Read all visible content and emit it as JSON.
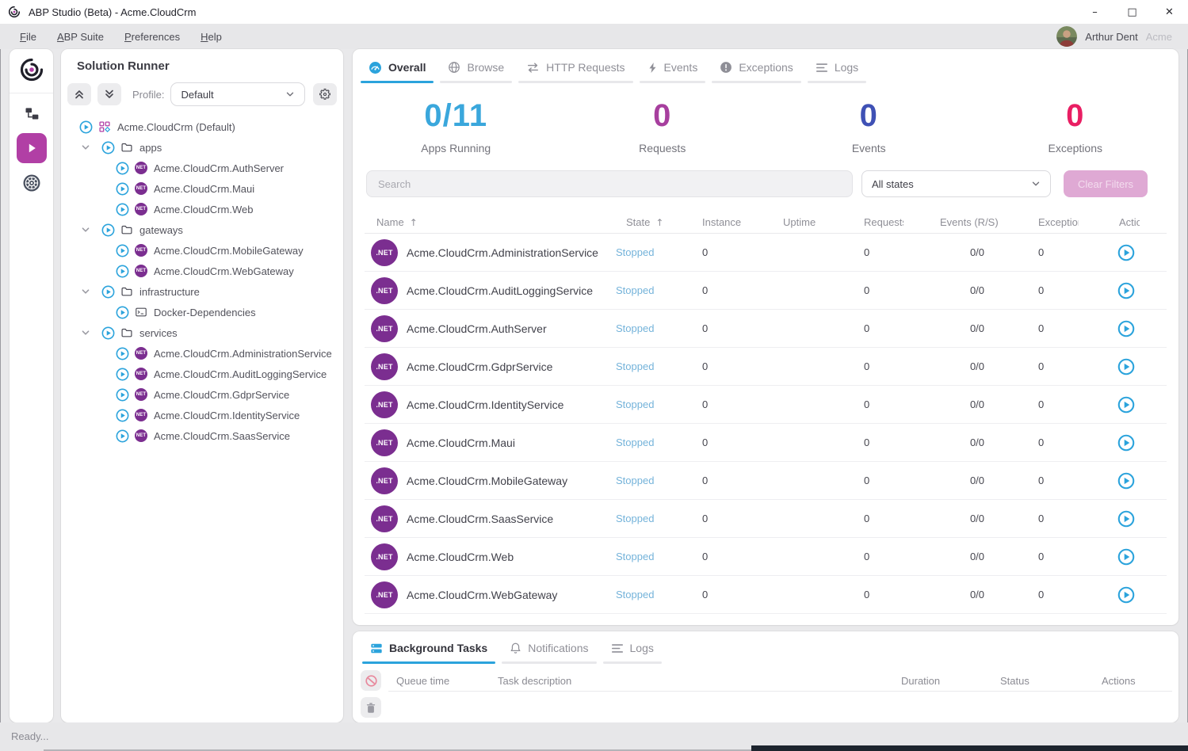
{
  "window": {
    "title": "ABP Studio (Beta) - Acme.CloudCrm"
  },
  "menubar": {
    "items": [
      "File",
      "ABP Suite",
      "Preferences",
      "Help"
    ],
    "user_name": "Arthur Dent",
    "org_name": "Acme"
  },
  "rail": {
    "items": [
      {
        "name": "abp-logo",
        "icon": "abp"
      },
      {
        "name": "solution-explorer",
        "icon": "treeview"
      },
      {
        "name": "solution-runner",
        "icon": "play",
        "active": true
      },
      {
        "name": "kubernetes",
        "icon": "helm"
      }
    ]
  },
  "sidebar": {
    "title": "Solution Runner",
    "profile_label": "Profile:",
    "profile_value": "Default",
    "tree": [
      {
        "label": "Acme.CloudCrm (Default)",
        "type": "root"
      },
      {
        "label": "apps",
        "type": "folder"
      },
      {
        "label": "Acme.CloudCrm.AuthServer",
        "type": "dotnet"
      },
      {
        "label": "Acme.CloudCrm.Maui",
        "type": "dotnet"
      },
      {
        "label": "Acme.CloudCrm.Web",
        "type": "dotnet"
      },
      {
        "label": "gateways",
        "type": "folder"
      },
      {
        "label": "Acme.CloudCrm.MobileGateway",
        "type": "dotnet"
      },
      {
        "label": "Acme.CloudCrm.WebGateway",
        "type": "dotnet"
      },
      {
        "label": "infrastructure",
        "type": "folder"
      },
      {
        "label": "Docker-Dependencies",
        "type": "terminal"
      },
      {
        "label": "services",
        "type": "folder"
      },
      {
        "label": "Acme.CloudCrm.AdministrationService",
        "type": "dotnet"
      },
      {
        "label": "Acme.CloudCrm.AuditLoggingService",
        "type": "dotnet"
      },
      {
        "label": "Acme.CloudCrm.GdprService",
        "type": "dotnet"
      },
      {
        "label": "Acme.CloudCrm.IdentityService",
        "type": "dotnet"
      },
      {
        "label": "Acme.CloudCrm.SaasService",
        "type": "dotnet"
      }
    ]
  },
  "main": {
    "tabs": [
      {
        "label": "Overall",
        "icon": "gauge",
        "active": true
      },
      {
        "label": "Browse",
        "icon": "globe",
        "active": false
      },
      {
        "label": "HTTP Requests",
        "icon": "arrows",
        "active": false
      },
      {
        "label": "Events",
        "icon": "bolt",
        "active": false
      },
      {
        "label": "Exceptions",
        "icon": "excl",
        "active": false
      },
      {
        "label": "Logs",
        "icon": "lines",
        "active": false
      }
    ],
    "stats": [
      {
        "value": "0/11",
        "label": "Apps Running",
        "color": "#3aa7dc"
      },
      {
        "value": "0",
        "label": "Requests",
        "color": "#a73f9e"
      },
      {
        "value": "0",
        "label": "Events",
        "color": "#3f51b5"
      },
      {
        "value": "0",
        "label": "Exceptions",
        "color": "#e91e63"
      }
    ],
    "search_placeholder": "Search",
    "state_filter_value": "All states",
    "clear_filters_label": "Clear Filters",
    "table": {
      "columns": [
        "Name",
        "State",
        "Instance",
        "Uptime",
        "Requests",
        "Events (R/S)",
        "Exceptions",
        "Actions"
      ],
      "sorted_columns": [
        "Name",
        "State"
      ],
      "rows": [
        {
          "name": "Acme.CloudCrm.AdministrationService",
          "state": "Stopped",
          "instance": "0",
          "uptime": "",
          "requests": "0",
          "events": "0/0",
          "exceptions": "0"
        },
        {
          "name": "Acme.CloudCrm.AuditLoggingService",
          "state": "Stopped",
          "instance": "0",
          "uptime": "",
          "requests": "0",
          "events": "0/0",
          "exceptions": "0"
        },
        {
          "name": "Acme.CloudCrm.AuthServer",
          "state": "Stopped",
          "instance": "0",
          "uptime": "",
          "requests": "0",
          "events": "0/0",
          "exceptions": "0"
        },
        {
          "name": "Acme.CloudCrm.GdprService",
          "state": "Stopped",
          "instance": "0",
          "uptime": "",
          "requests": "0",
          "events": "0/0",
          "exceptions": "0"
        },
        {
          "name": "Acme.CloudCrm.IdentityService",
          "state": "Stopped",
          "instance": "0",
          "uptime": "",
          "requests": "0",
          "events": "0/0",
          "exceptions": "0"
        },
        {
          "name": "Acme.CloudCrm.Maui",
          "state": "Stopped",
          "instance": "0",
          "uptime": "",
          "requests": "0",
          "events": "0/0",
          "exceptions": "0"
        },
        {
          "name": "Acme.CloudCrm.MobileGateway",
          "state": "Stopped",
          "instance": "0",
          "uptime": "",
          "requests": "0",
          "events": "0/0",
          "exceptions": "0"
        },
        {
          "name": "Acme.CloudCrm.SaasService",
          "state": "Stopped",
          "instance": "0",
          "uptime": "",
          "requests": "0",
          "events": "0/0",
          "exceptions": "0"
        },
        {
          "name": "Acme.CloudCrm.Web",
          "state": "Stopped",
          "instance": "0",
          "uptime": "",
          "requests": "0",
          "events": "0/0",
          "exceptions": "0"
        },
        {
          "name": "Acme.CloudCrm.WebGateway",
          "state": "Stopped",
          "instance": "0",
          "uptime": "",
          "requests": "0",
          "events": "0/0",
          "exceptions": "0"
        }
      ]
    }
  },
  "bottom_panel": {
    "tabs": [
      {
        "label": "Background Tasks",
        "icon": "stack",
        "active": true
      },
      {
        "label": "Notifications",
        "icon": "bell",
        "active": false
      },
      {
        "label": "Logs",
        "icon": "lines",
        "active": false
      }
    ],
    "columns": [
      "Queue time",
      "Task description",
      "Duration",
      "Status",
      "Actions"
    ]
  },
  "statusbar": {
    "text": "Ready..."
  },
  "colors": {
    "accent_blue": "#2ba3dc",
    "brand_magenta": "#b13fa5",
    "dotnet_purple": "#7b2e90",
    "state_stopped": "#74b3da",
    "stat_apps": "#3aa7dc",
    "stat_requests": "#a73f9e",
    "stat_events": "#3f51b5",
    "stat_exceptions": "#e91e63"
  }
}
